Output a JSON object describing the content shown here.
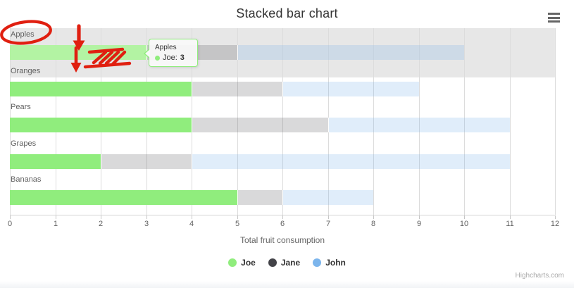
{
  "chart_data": {
    "type": "bar",
    "horizontal": true,
    "stacked": true,
    "title": "Stacked bar chart",
    "xlabel": "Total fruit consumption",
    "categories": [
      "Apples",
      "Oranges",
      "Pears",
      "Grapes",
      "Bananas"
    ],
    "series": [
      {
        "name": "Joe",
        "color": "#90ed7d",
        "values": [
          3,
          4,
          4,
          2,
          5
        ]
      },
      {
        "name": "Jane",
        "color": "#434348",
        "values": [
          2,
          2,
          3,
          2,
          1
        ]
      },
      {
        "name": "John",
        "color": "#7cb5ec",
        "values": [
          5,
          3,
          4,
          7,
          2
        ]
      }
    ],
    "display_colors": [
      "#90ed7d",
      "rgba(67,67,72,0.2)",
      "rgba(124,181,236,0.24)"
    ],
    "hover": {
      "series_index": 0,
      "category_index": 0,
      "color": "#b3f3a3"
    },
    "xlim": [
      0,
      12
    ],
    "x_ticks": [
      "0",
      "1",
      "2",
      "3",
      "4",
      "5",
      "6",
      "7",
      "8",
      "9",
      "10",
      "11",
      "12"
    ],
    "grid": true,
    "legend_position": "bottom"
  },
  "tooltip": {
    "category": "Apples",
    "series": "Joe",
    "series_label": "Joe:",
    "value": "3"
  },
  "credits": {
    "label": "Highcharts.com"
  },
  "context_menu": {
    "icon": "hamburger-menu-icon"
  },
  "colors": {
    "hover_band": "#e7e7e7",
    "gridline": "#dcdcdc",
    "axis_line": "#d6d6d6",
    "annotation_red": "#e01f10",
    "title_text": "#333333",
    "axis_text": "#606060"
  },
  "annotations": {
    "color": "#e01f10",
    "items": [
      "red-ellipse-around-apples-label",
      "red-down-arrow-large",
      "red-down-arrow-small",
      "red-hatch-scribble"
    ]
  }
}
